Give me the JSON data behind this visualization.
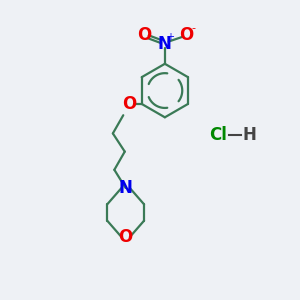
{
  "bg_color": "#eef1f5",
  "bond_color": "#3a7a56",
  "N_color": "#0000ee",
  "O_color": "#ee0000",
  "Cl_color": "#008800",
  "line_width": 1.6,
  "font_size": 11,
  "nitro_N_label": "N",
  "nitro_plus": "+",
  "nitro_minus": "-",
  "morph_N_label": "N",
  "morph_O_label": "O",
  "ether_O_label": "O",
  "O_label": "O",
  "Cl_label": "Cl",
  "H_label": "H"
}
